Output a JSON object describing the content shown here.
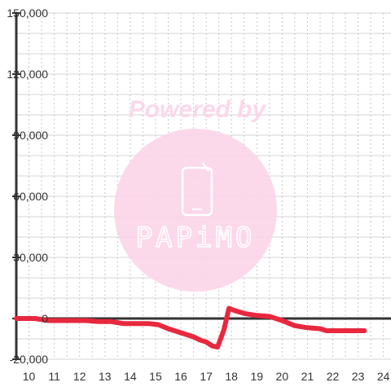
{
  "chart_data": {
    "type": "line",
    "title": "",
    "xlabel": "",
    "ylabel": "",
    "xlim": [
      9.5,
      24.3
    ],
    "ylim": [
      -20000,
      150000
    ],
    "x_ticks": [
      10,
      11,
      12,
      13,
      14,
      15,
      16,
      17,
      18,
      19,
      20,
      21,
      22,
      23,
      24
    ],
    "x_tick_labels": [
      "10",
      "11",
      "12",
      "13",
      "14",
      "15",
      "16",
      "17",
      "18",
      "19",
      "20",
      "21",
      "22",
      "23",
      "24"
    ],
    "y_ticks": [
      150000,
      120000,
      90000,
      60000,
      30000,
      0,
      -20000
    ],
    "y_tick_labels": [
      "150,000",
      "120,000",
      "90,000",
      "60,000",
      "30,000",
      "0",
      "-20,000"
    ],
    "grid": true,
    "series": [
      {
        "color": "#e8283e",
        "x": [
          9.5,
          10.25,
          10.75,
          11.5,
          12.25,
          12.75,
          13.25,
          13.75,
          14.25,
          14.75,
          15.1,
          15.5,
          16.0,
          16.5,
          16.75,
          17.0,
          17.25,
          17.45,
          17.7,
          17.9,
          18.1,
          18.5,
          19.0,
          19.5,
          20.0,
          20.5,
          21.0,
          21.5,
          21.75,
          22.25,
          22.75,
          23.25
        ],
        "y": [
          0,
          0,
          -1000,
          -1000,
          -1000,
          -1500,
          -1500,
          -2500,
          -2500,
          -2500,
          -3000,
          -5000,
          -7000,
          -9000,
          -10500,
          -11500,
          -13500,
          -14000,
          -5500,
          5000,
          4000,
          2500,
          1500,
          1000,
          -1000,
          -3500,
          -4500,
          -5000,
          -6000,
          -6000,
          -6000,
          -6000
        ]
      }
    ],
    "watermark": {
      "text": "Powered by",
      "logo_text": "PAPiMO",
      "color": "#fcd6ea"
    }
  }
}
